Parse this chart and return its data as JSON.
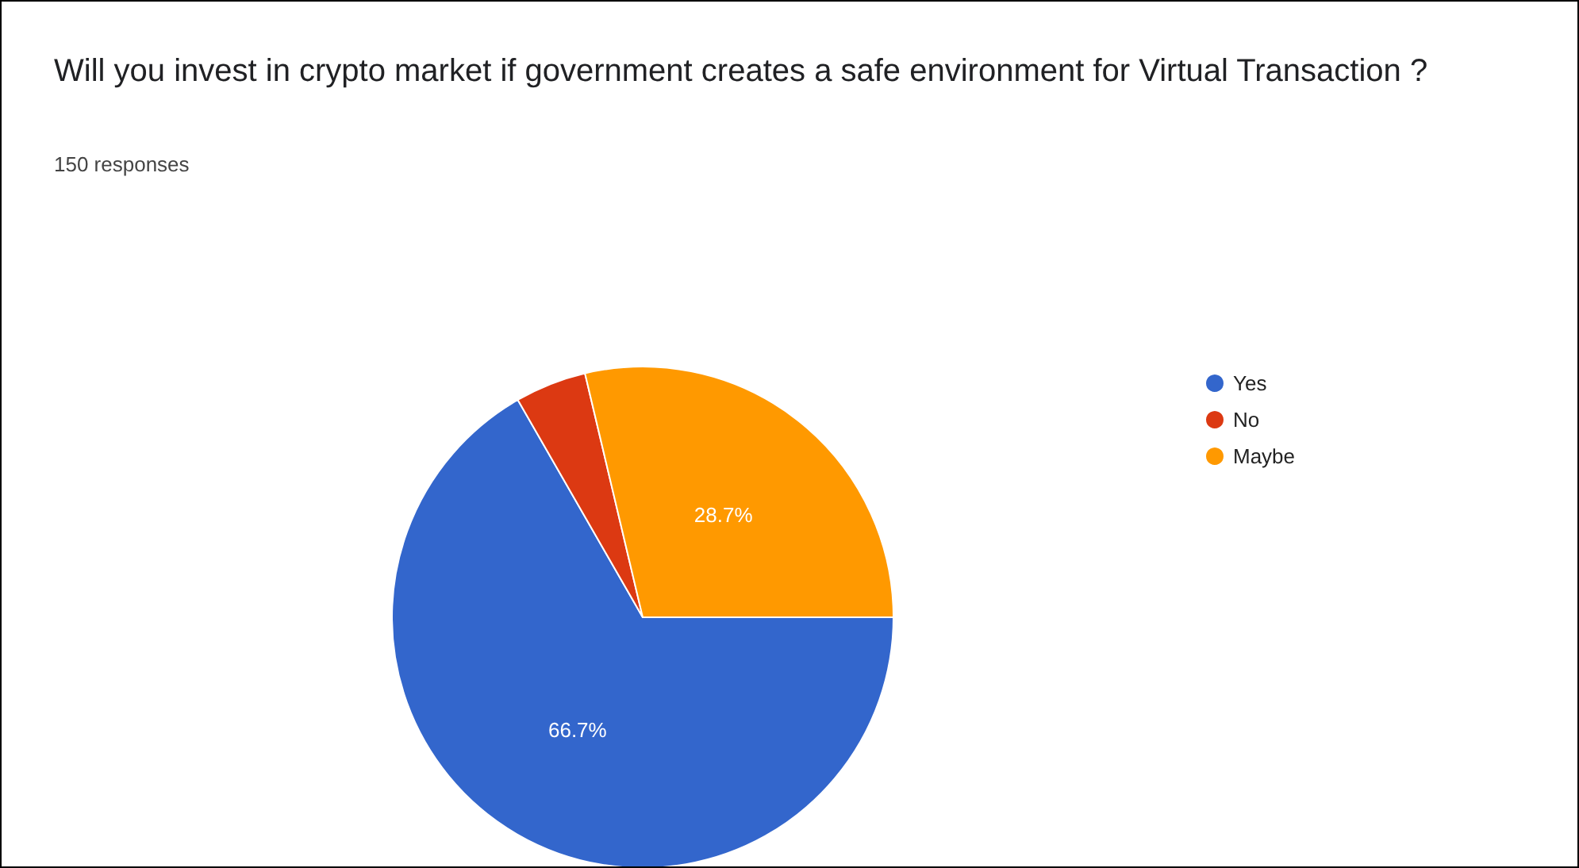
{
  "chart_data": {
    "type": "pie",
    "title": "Will you invest in crypto market if government creates a safe environment for Virtual Transaction ?",
    "subtitle": "150 responses",
    "categories": [
      "Yes",
      "No",
      "Maybe"
    ],
    "values": [
      66.7,
      4.6,
      28.7
    ],
    "colors": [
      "#3366cc",
      "#dc3912",
      "#ff9900"
    ],
    "value_labels": [
      "66.7%",
      null,
      "28.7%"
    ],
    "legend": "right"
  }
}
